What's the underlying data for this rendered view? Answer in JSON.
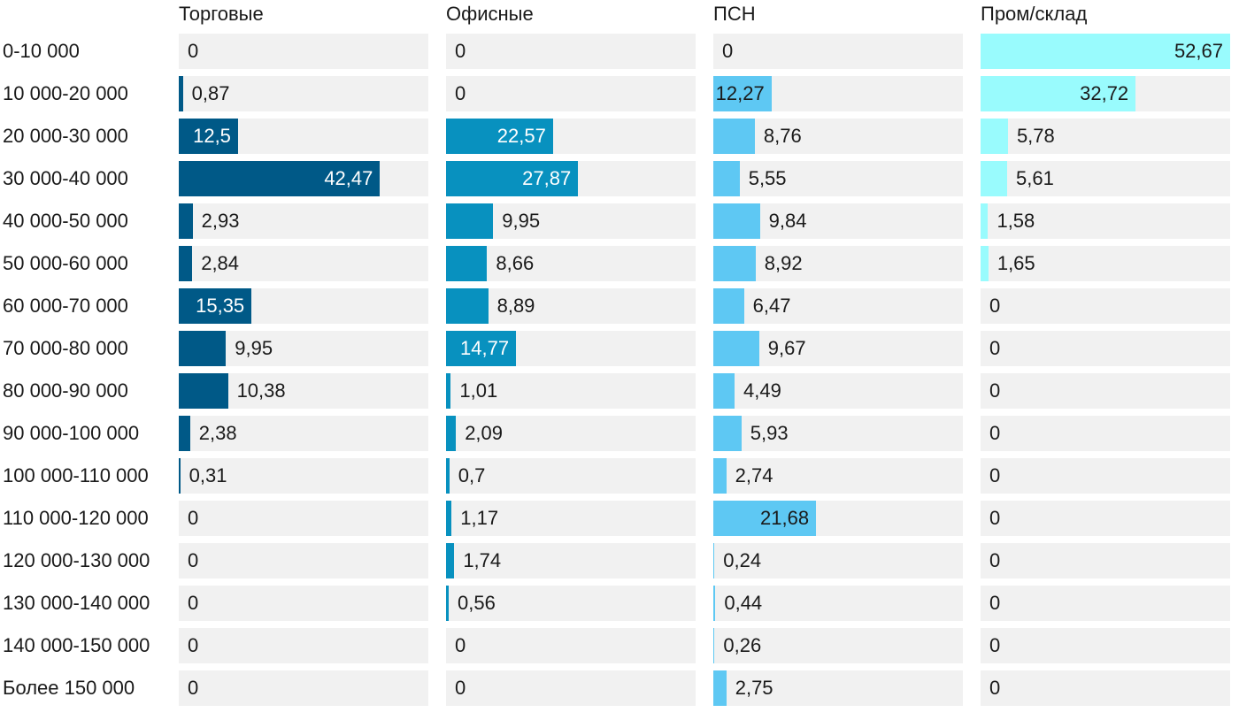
{
  "chart_data": {
    "type": "bar",
    "orientation": "horizontal",
    "layout": "small-multiples",
    "xlim": [
      0,
      52.67
    ],
    "categories": [
      "0-10 000",
      "10 000-20 000",
      "20 000-30 000",
      "30 000-40 000",
      "40 000-50 000",
      "50 000-60 000",
      "60 000-70 000",
      "70 000-80 000",
      "80 000-90 000",
      "90 000-100 000",
      "100 000-110 000",
      "110 000-120 000",
      "120 000-130 000",
      "130 000-140 000",
      "140 000-150 000",
      "Более 150 000"
    ],
    "series": [
      {
        "name": "Торговые",
        "color": "#005987",
        "text_color": "#ffffff",
        "values": [
          0,
          0.87,
          12.5,
          42.47,
          2.93,
          2.84,
          15.35,
          9.95,
          10.38,
          2.38,
          0.31,
          0,
          0,
          0,
          0,
          0
        ],
        "labels": [
          "0",
          "0,87",
          "12,5",
          "42,47",
          "2,93",
          "2,84",
          "15,35",
          "9,95",
          "10,38",
          "2,38",
          "0,31",
          "0",
          "0",
          "0",
          "0",
          "0"
        ]
      },
      {
        "name": "Офисные",
        "color": "#0891bf",
        "text_color": "#ffffff",
        "values": [
          0,
          0,
          22.57,
          27.87,
          9.95,
          8.66,
          8.89,
          14.77,
          1.01,
          2.09,
          0.7,
          1.17,
          1.74,
          0.56,
          0,
          0
        ],
        "labels": [
          "0",
          "0",
          "22,57",
          "27,87",
          "9,95",
          "8,66",
          "8,89",
          "14,77",
          "1,01",
          "2,09",
          "0,7",
          "1,17",
          "1,74",
          "0,56",
          "0",
          "0"
        ]
      },
      {
        "name": "ПСН",
        "color": "#5ec8f3",
        "text_color": "#1a1a1a",
        "values": [
          0,
          12.27,
          8.76,
          5.55,
          9.84,
          8.92,
          6.47,
          9.67,
          4.49,
          5.93,
          2.74,
          21.68,
          0.24,
          0.44,
          0.26,
          2.75
        ],
        "labels": [
          "0",
          "12,27",
          "8,76",
          "5,55",
          "9,84",
          "8,92",
          "6,47",
          "9,67",
          "4,49",
          "5,93",
          "2,74",
          "21,68",
          "0,24",
          "0,44",
          "0,26",
          "2,75"
        ]
      },
      {
        "name": "Пром/склад",
        "color": "#99fbfd",
        "text_color": "#1a1a1a",
        "values": [
          52.67,
          32.72,
          5.78,
          5.61,
          1.58,
          1.65,
          0,
          0,
          0,
          0,
          0,
          0,
          0,
          0,
          0,
          0
        ],
        "labels": [
          "52,67",
          "32,72",
          "5,78",
          "5,61",
          "1,58",
          "1,65",
          "0",
          "0",
          "0",
          "0",
          "0",
          "0",
          "0",
          "0",
          "0",
          "0"
        ]
      }
    ]
  }
}
